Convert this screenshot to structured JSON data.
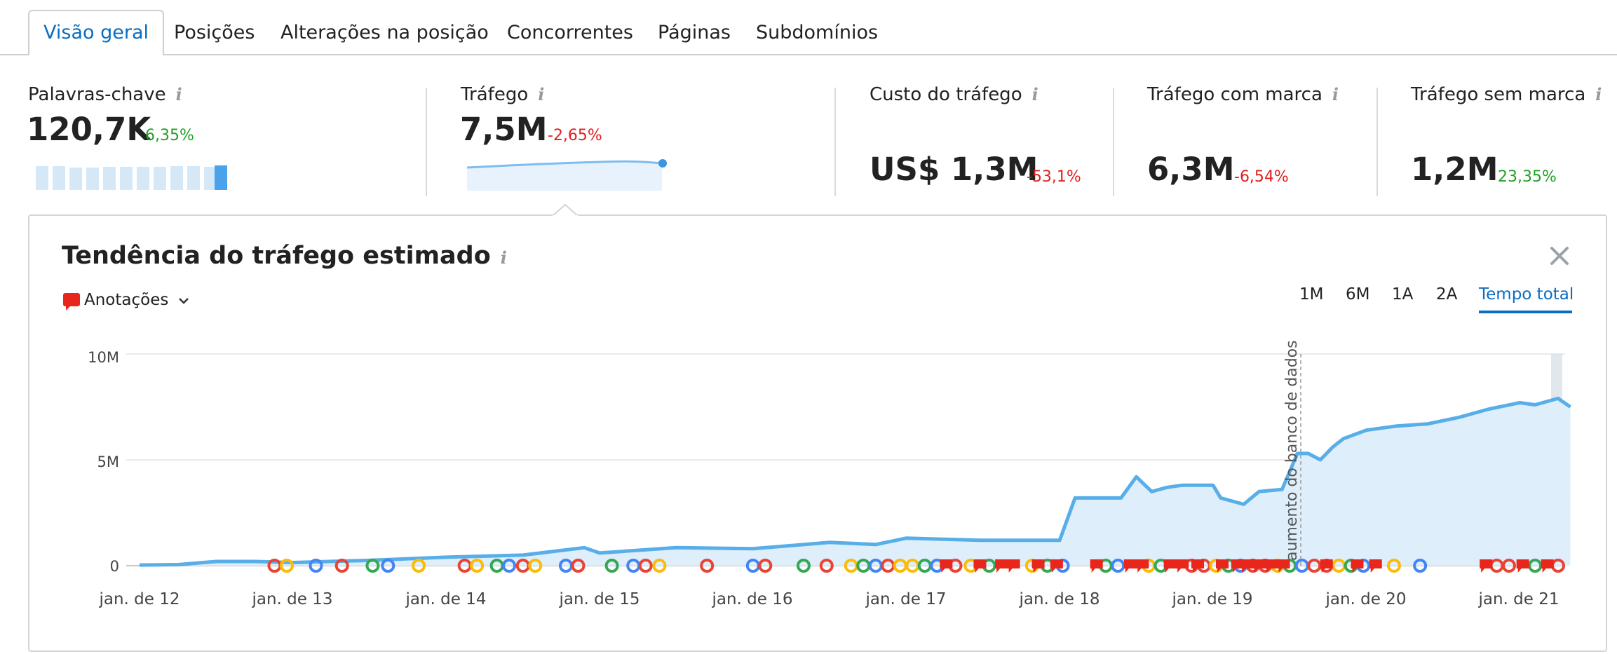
{
  "tabs": [
    {
      "label": "Visão geral",
      "active": true
    },
    {
      "label": "Posições"
    },
    {
      "label": "Alterações na posição"
    },
    {
      "label": "Concorrentes"
    },
    {
      "label": "Páginas"
    },
    {
      "label": "Subdomínios"
    }
  ],
  "metrics": {
    "keywords": {
      "label": "Palavras-chave",
      "value": "120,7K",
      "delta": "6,35%"
    },
    "traffic": {
      "label": "Tráfego",
      "value": "7,5M",
      "delta": "-2,65%"
    },
    "traffic_cost": {
      "label": "Custo do tráfego",
      "value": "US$ 1,3M",
      "delta": "-53,1%"
    },
    "branded": {
      "label": "Tráfego com marca",
      "value": "6,3M",
      "delta": "-6,54%"
    },
    "nonbranded": {
      "label": "Tráfego sem marca",
      "value": "1,2M",
      "delta": "23,35%"
    }
  },
  "info_glyph": "i",
  "panel": {
    "title": "Tendência do tráfego estimado",
    "annotations_label": "Anotações",
    "ranges": [
      "1M",
      "6M",
      "1A",
      "2A",
      "Tempo total"
    ],
    "active_range": "Tempo total"
  },
  "colors": {
    "accent": "#0a6dc2",
    "line": "#57aee8",
    "area": "#deeefb",
    "up": "#23a025",
    "down": "#e02020",
    "annotation": "#e8261c"
  },
  "icons": [
    "info-icon",
    "close-icon",
    "annotation-flag-icon",
    "chevron-down-icon",
    "google-update-icon"
  ],
  "chart_data": {
    "type": "area",
    "title": "Tendência do tráfego estimado",
    "y_ticks": [
      "10M",
      "5M",
      "0"
    ],
    "ylim": [
      0,
      10000000
    ],
    "x_ticks": [
      "jan. de 12",
      "jan. de 13",
      "jan. de 14",
      "jan. de 15",
      "jan. de 16",
      "jan. de 17",
      "jan. de 18",
      "jan. de 19",
      "jan. de 20",
      "jan. de 21"
    ],
    "grid": true,
    "annotation_text": "aumento do banco de dados",
    "series": [
      {
        "x": [
          2012.0,
          2012.25,
          2012.5,
          2012.75,
          2013.0,
          2013.5,
          2014.0,
          2014.5,
          2014.9,
          2015.0,
          2015.5,
          2016.0,
          2016.5,
          2016.8,
          2017.0,
          2017.5,
          2017.9,
          2018.0,
          2018.1,
          2018.2,
          2018.4,
          2018.5,
          2018.6,
          2018.7,
          2018.8,
          2019.0,
          2019.05,
          2019.2,
          2019.3,
          2019.45,
          2019.55,
          2019.62,
          2019.7,
          2019.78,
          2019.85,
          2020.0,
          2020.2,
          2020.4,
          2020.6,
          2020.8,
          2021.0,
          2021.1,
          2021.25,
          2021.33
        ],
        "y": [
          30000,
          50000,
          200000,
          200000,
          150000,
          250000,
          400000,
          500000,
          850000,
          600000,
          850000,
          800000,
          1100000,
          1000000,
          1300000,
          1200000,
          1200000,
          1200000,
          3200000,
          3200000,
          3200000,
          4200000,
          3500000,
          3700000,
          3800000,
          3800000,
          3200000,
          2900000,
          3500000,
          3600000,
          5300000,
          5300000,
          5000000,
          5600000,
          6000000,
          6400000,
          6600000,
          6700000,
          7000000,
          7400000,
          7700000,
          7600000,
          7900000,
          7500000
        ]
      }
    ]
  }
}
